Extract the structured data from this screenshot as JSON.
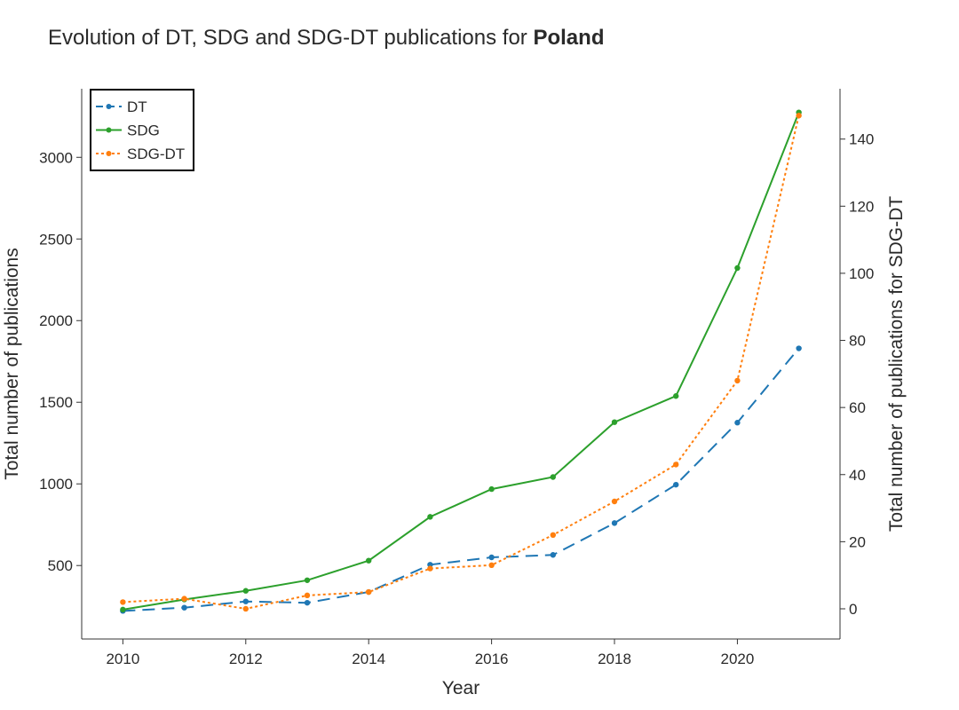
{
  "chart_data": {
    "type": "line",
    "title_prefix": "Evolution of DT, SDG and SDG-DT publications for ",
    "title_country": "Poland",
    "xlabel": "Year",
    "ylabel_left": "Total number of publications",
    "ylabel_right": "Total number of publications for SDG-DT",
    "x": [
      2010,
      2011,
      2012,
      2013,
      2014,
      2015,
      2016,
      2017,
      2018,
      2019,
      2020,
      2021
    ],
    "x_ticks": [
      2010,
      2012,
      2014,
      2016,
      2018,
      2020
    ],
    "xlim": [
      2009.33,
      2021.67
    ],
    "ylim_left": [
      50,
      3420
    ],
    "y_ticks_left": [
      500,
      1000,
      1500,
      2000,
      2500,
      3000
    ],
    "ylim_right": [
      -9,
      155
    ],
    "y_ticks_right": [
      0,
      20,
      40,
      60,
      80,
      100,
      120,
      140
    ],
    "grid": false,
    "legend_position": "top-left",
    "series": [
      {
        "name": "DT",
        "axis": "left",
        "color": "#1f77b4",
        "line_style": "dashed",
        "values": [
          222,
          242,
          280,
          272,
          338,
          505,
          550,
          565,
          760,
          995,
          1375,
          1830
        ]
      },
      {
        "name": "SDG",
        "axis": "left",
        "color": "#2ca02c",
        "line_style": "solid",
        "values": [
          230,
          292,
          345,
          410,
          530,
          798,
          968,
          1042,
          1378,
          1538,
          2322,
          3275
        ]
      },
      {
        "name": "SDG-DT",
        "axis": "right",
        "color": "#ff7f0e",
        "line_style": "dotted",
        "values": [
          2,
          3,
          0,
          4,
          5,
          12,
          13,
          22,
          32,
          43,
          68,
          147
        ]
      }
    ]
  }
}
